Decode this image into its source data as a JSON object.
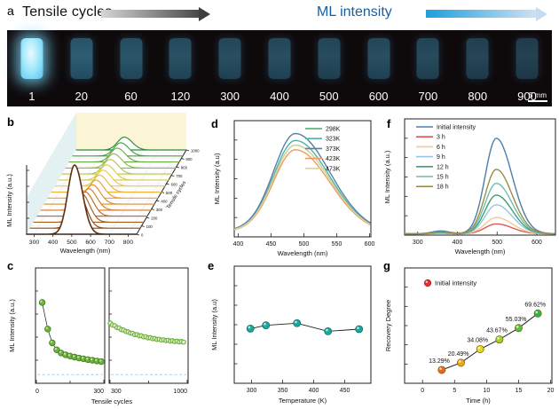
{
  "figure": {
    "panels": {
      "a": "a",
      "b": "b",
      "c": "c",
      "d": "d",
      "e": "e",
      "f": "f",
      "g": "g"
    },
    "header": {
      "left_label": "Tensile cycles",
      "right_label": "ML intensity",
      "right_label_color": "#1460a8",
      "gray_arrow": {
        "from": "#d6d6d6",
        "to": "#4a4a4a",
        "head": "#3f3f3f"
      },
      "blue_arrow": {
        "from": "#1e9fdc",
        "to": "#cfe0f2",
        "head": "#c6dcf2"
      }
    },
    "photo_strip": {
      "cycle_labels": [
        "1",
        "20",
        "60",
        "120",
        "300",
        "400",
        "500",
        "600",
        "700",
        "800",
        "900"
      ],
      "sample_brightness": [
        1,
        0.66,
        0.6,
        0.57,
        0.55,
        0.55,
        0.53,
        0.55,
        0.52,
        0.48,
        0.45
      ],
      "scale_bar": "5 mm"
    }
  },
  "chart_data": [
    {
      "id": "b",
      "type": "area",
      "variant": "waterfall3d",
      "xlabel": "Wavelength (nm)",
      "ylabel": "ML Intensity (a.u.)",
      "zlabel": "Tensile cycles",
      "xlim": [
        260,
        845
      ],
      "x_ticks": [
        300,
        400,
        500,
        600,
        700,
        800
      ],
      "zlim": [
        0,
        1000
      ],
      "z_ticks": [
        0,
        100,
        200,
        300,
        400,
        500,
        600,
        700,
        800,
        900,
        1000
      ],
      "peak_center_nm": 515,
      "peak_sigma_nm": 36,
      "wall_colors": {
        "left": "#e4f1f2",
        "back": "#fbf5d6"
      },
      "series": [
        {
          "cycles": 1,
          "amp": 1.0,
          "color": "#5f2f10"
        },
        {
          "cycles": 25,
          "amp": 0.51,
          "color": "#8a4a16"
        },
        {
          "cycles": 50,
          "amp": 0.41,
          "color": "#a85c1a"
        },
        {
          "cycles": 100,
          "amp": 0.35,
          "color": "#c06a1e"
        },
        {
          "cycles": 150,
          "amp": 0.31,
          "color": "#d47c22"
        },
        {
          "cycles": 200,
          "amp": 0.28,
          "color": "#e08c28"
        },
        {
          "cycles": 250,
          "amp": 0.26,
          "color": "#eaa032"
        },
        {
          "cycles": 300,
          "amp": 0.245,
          "color": "#f0b43c"
        },
        {
          "cycles": 400,
          "amp": 0.23,
          "color": "#ecc848"
        },
        {
          "cycles": 500,
          "amp": 0.22,
          "color": "#d8cc4c"
        },
        {
          "cycles": 600,
          "amp": 0.21,
          "color": "#b8c44c"
        },
        {
          "cycles": 700,
          "amp": 0.205,
          "color": "#94b848"
        },
        {
          "cycles": 800,
          "amp": 0.2,
          "color": "#6cac44"
        },
        {
          "cycles": 900,
          "amp": 0.19,
          "color": "#48a040"
        },
        {
          "cycles": 1000,
          "amp": 0.185,
          "color": "#2c8c3c"
        }
      ]
    },
    {
      "id": "c",
      "type": "scatter",
      "xlabel": "Tensile cycles",
      "ylabel": "ML Intensity (a.u.)",
      "marker_fill": "#6fb23c",
      "marker_stroke": "#3f7d1e",
      "baseline_color": "#a8d4ec",
      "baseline_y": 0.075,
      "panels": [
        {
          "xlim": [
            0,
            310
          ],
          "x_tick_labels": [
            "0",
            "300"
          ],
          "points": [
            [
              30,
              0.7
            ],
            [
              55,
              0.47
            ],
            [
              75,
              0.35
            ],
            [
              95,
              0.29
            ],
            [
              115,
              0.262
            ],
            [
              135,
              0.247
            ],
            [
              155,
              0.236
            ],
            [
              175,
              0.227
            ],
            [
              195,
              0.219
            ],
            [
              215,
              0.212
            ],
            [
              235,
              0.205
            ],
            [
              255,
              0.199
            ],
            [
              275,
              0.193
            ],
            [
              295,
              0.188
            ]
          ]
        },
        {
          "xlim": [
            300,
            1010
          ],
          "x_tick_labels": [
            "300",
            "1000"
          ],
          "points": [
            [
              310,
              0.522
            ],
            [
              330,
              0.505
            ],
            [
              350,
              0.499
            ],
            [
              370,
              0.483
            ],
            [
              390,
              0.479
            ],
            [
              410,
              0.465
            ],
            [
              430,
              0.461
            ],
            [
              450,
              0.449
            ],
            [
              470,
              0.446
            ],
            [
              490,
              0.435
            ],
            [
              510,
              0.433
            ],
            [
              530,
              0.422
            ],
            [
              550,
              0.422
            ],
            [
              570,
              0.412
            ],
            [
              590,
              0.412
            ],
            [
              610,
              0.402
            ],
            [
              630,
              0.403
            ],
            [
              650,
              0.394
            ],
            [
              670,
              0.395
            ],
            [
              690,
              0.387
            ],
            [
              710,
              0.388
            ],
            [
              730,
              0.38
            ],
            [
              750,
              0.382
            ],
            [
              770,
              0.375
            ],
            [
              790,
              0.377
            ],
            [
              810,
              0.37
            ],
            [
              830,
              0.373
            ],
            [
              850,
              0.366
            ],
            [
              870,
              0.369
            ],
            [
              890,
              0.362
            ],
            [
              910,
              0.365
            ],
            [
              930,
              0.359
            ],
            [
              950,
              0.362
            ],
            [
              970,
              0.357
            ]
          ]
        }
      ]
    },
    {
      "id": "d",
      "type": "line",
      "xlabel": "Wavelength (nm)",
      "ylabel": "ML Intensity (a.u)",
      "xlim": [
        394,
        602
      ],
      "x_ticks": [
        400,
        450,
        500,
        550,
        600
      ],
      "shape": {
        "center": 487,
        "sigma_left": 33,
        "sigma_right": 52
      },
      "legend_position": "top-right",
      "series": [
        {
          "name": "298K",
          "color": "#47a866",
          "amp": 0.78
        },
        {
          "name": "323K",
          "color": "#52b2ac",
          "amp": 0.82
        },
        {
          "name": "373K",
          "color": "#5c7fa6",
          "amp": 0.88
        },
        {
          "name": "423K",
          "color": "#f09a5e",
          "amp": 0.74
        },
        {
          "name": "473K",
          "color": "#d6d898",
          "amp": 0.78
        }
      ]
    },
    {
      "id": "e",
      "type": "scatter",
      "xlabel": "Temperature (K)",
      "ylabel": "ML Intensity (a.u)",
      "xlim": [
        272,
        492
      ],
      "x_ticks": [
        300,
        350,
        400,
        450
      ],
      "marker_color": "#1ba8a0",
      "marker_stroke": "#0d6b66",
      "points": [
        [
          298,
          0.467
        ],
        [
          323,
          0.495
        ],
        [
          373,
          0.513
        ],
        [
          423,
          0.444
        ],
        [
          473,
          0.462
        ]
      ]
    },
    {
      "id": "f",
      "type": "line",
      "xlabel": "Wavelength (nm)",
      "ylabel": "ML Intensity (a.u.)",
      "xlim": [
        267,
        647
      ],
      "x_ticks": [
        300,
        400,
        500,
        600
      ],
      "shape": {
        "center": 498,
        "sigma_left": 28,
        "sigma_right": 40,
        "bump_center": 358,
        "bump_sigma": 22,
        "bump_amp": 0.03
      },
      "legend_position": "top-left",
      "series": [
        {
          "name": "Initial intensity",
          "color": "#4d7ea8",
          "amp": 0.89
        },
        {
          "name": "3 h",
          "color": "#e05555",
          "amp": 0.092
        },
        {
          "name": "6 h",
          "color": "#f6c990",
          "amp": 0.152
        },
        {
          "name": "9 h",
          "color": "#92c5e8",
          "amp": 0.27
        },
        {
          "name": "12 h",
          "color": "#3da06e",
          "amp": 0.36
        },
        {
          "name": "15 h",
          "color": "#72bcb4",
          "amp": 0.47
        },
        {
          "name": "18 h",
          "color": "#988f42",
          "amp": 0.6
        }
      ]
    },
    {
      "id": "g",
      "type": "scatter",
      "xlabel": "Time (h)",
      "ylabel": "Recovery Degree",
      "xlim": [
        -2.8,
        20.2
      ],
      "x_ticks": [
        0,
        5,
        10,
        15,
        20
      ],
      "ylim": [
        0,
        115
      ],
      "legend": {
        "label": "Initial intensity",
        "color": "#e83030"
      },
      "points": [
        {
          "x": 3,
          "y": 13.29,
          "label": "13.29%",
          "color": "#f26419"
        },
        {
          "x": 6,
          "y": 20.49,
          "label": "20.49%",
          "color": "#f2a71b"
        },
        {
          "x": 9,
          "y": 34.08,
          "label": "34.08%",
          "color": "#e8d51f"
        },
        {
          "x": 12,
          "y": 43.67,
          "label": "43.67%",
          "color": "#9ed61f"
        },
        {
          "x": 15,
          "y": 55.03,
          "label": "55.03%",
          "color": "#50c43c"
        },
        {
          "x": 18,
          "y": 69.62,
          "label": "69.62%",
          "color": "#2ab84a"
        }
      ]
    }
  ]
}
